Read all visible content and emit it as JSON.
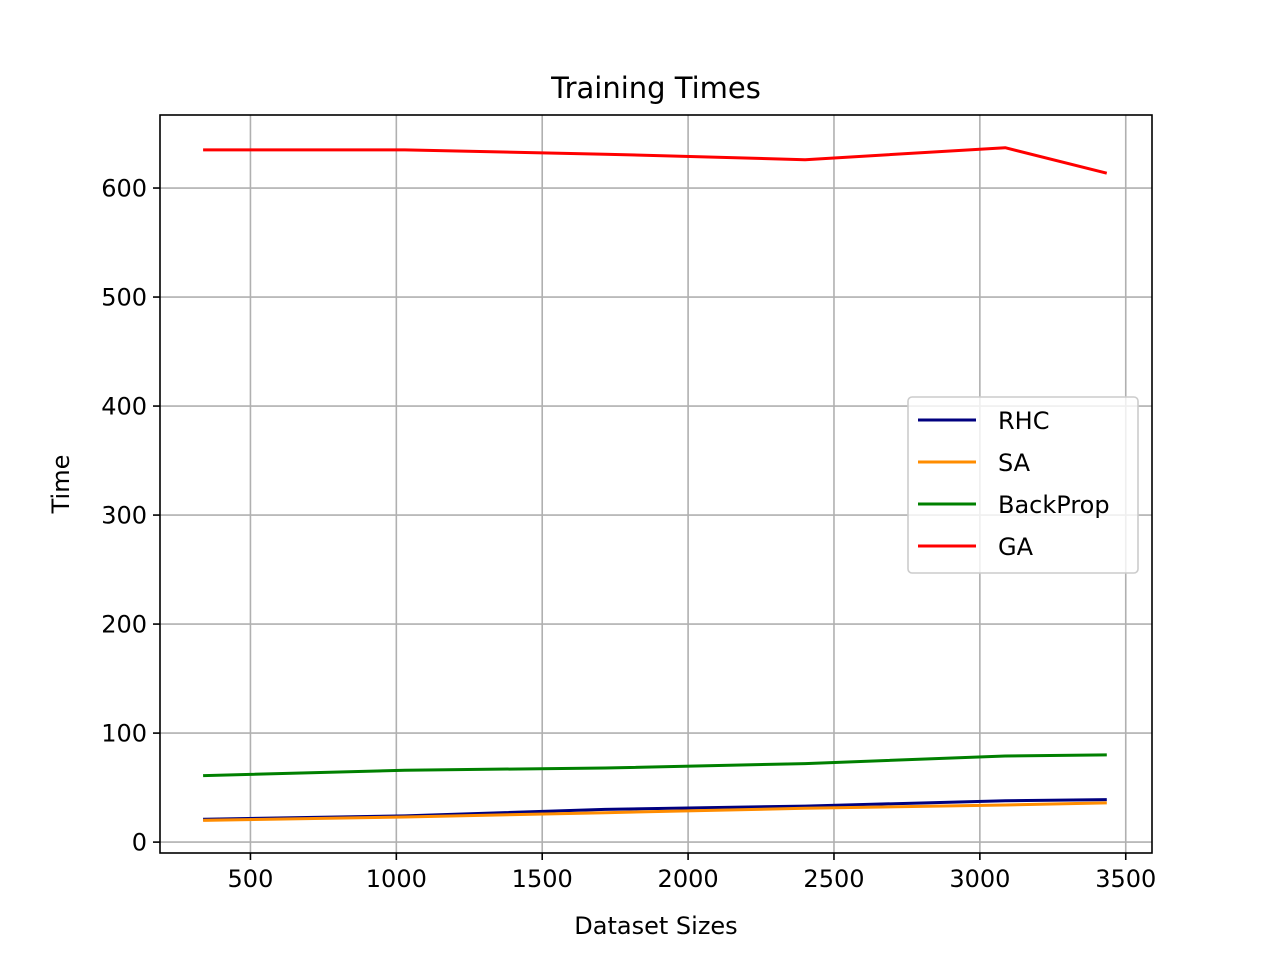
{
  "chart_data": {
    "type": "line",
    "title": "Training Times",
    "xlabel": "Dataset Sizes",
    "ylabel": "Time",
    "xlim": [
      190,
      3590
    ],
    "ylim": [
      -10,
      667
    ],
    "xticks": [
      500,
      1000,
      1500,
      2000,
      2500,
      3000,
      3500
    ],
    "yticks": [
      0,
      100,
      200,
      300,
      400,
      500,
      600
    ],
    "grid": true,
    "legend_position": "center-right",
    "series": [
      {
        "name": "RHC",
        "color": "#00007f",
        "x": [
          343,
          1029,
          1715,
          2401,
          3087,
          3430
        ],
        "y": [
          21,
          24,
          30,
          33,
          38,
          39
        ]
      },
      {
        "name": "SA",
        "color": "#ff8c00",
        "x": [
          343,
          1029,
          1715,
          2401,
          3087,
          3430
        ],
        "y": [
          20,
          23,
          27,
          31,
          34,
          36
        ]
      },
      {
        "name": "BackProp",
        "color": "#008000",
        "x": [
          343,
          1029,
          1715,
          2401,
          3087,
          3430
        ],
        "y": [
          61,
          66,
          68,
          72,
          79,
          80
        ]
      },
      {
        "name": "GA",
        "color": "#ff0000",
        "x": [
          343,
          1029,
          1715,
          2401,
          3087,
          3430
        ],
        "y": [
          635,
          635,
          631,
          626,
          637,
          614
        ]
      }
    ]
  }
}
